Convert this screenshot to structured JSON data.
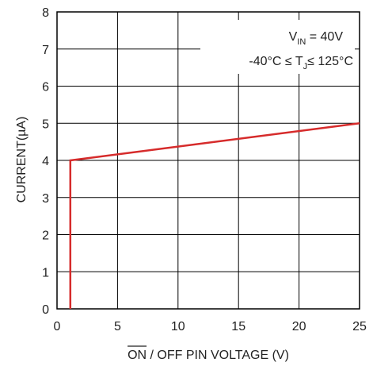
{
  "chart_data": {
    "type": "line",
    "title": "",
    "xlabel": {
      "overlined": "ON",
      "rest": " / OFF PIN VOLTAGE (V)"
    },
    "ylabel": "CURRENT(µA)",
    "xlim": [
      0,
      25
    ],
    "ylim": [
      0,
      8
    ],
    "x_ticks": [
      "0",
      "5",
      "10",
      "15",
      "20",
      "25"
    ],
    "y_ticks": [
      "0",
      "1",
      "2",
      "3",
      "4",
      "5",
      "6",
      "7",
      "8"
    ],
    "grid": true,
    "series": [
      {
        "color": "#d62b2b",
        "points": [
          {
            "x": 1.1,
            "y": 0
          },
          {
            "x": 1.1,
            "y": 4.0
          },
          {
            "x": 25,
            "y": 5.0
          }
        ]
      }
    ],
    "annotations": {
      "line1": {
        "prefix": "V",
        "sub": "IN",
        "suffix": " = 40V"
      },
      "line2": {
        "prefix": "-40°C ≤ T",
        "sub": "J",
        "suffix": "≤ 125°C"
      }
    }
  }
}
